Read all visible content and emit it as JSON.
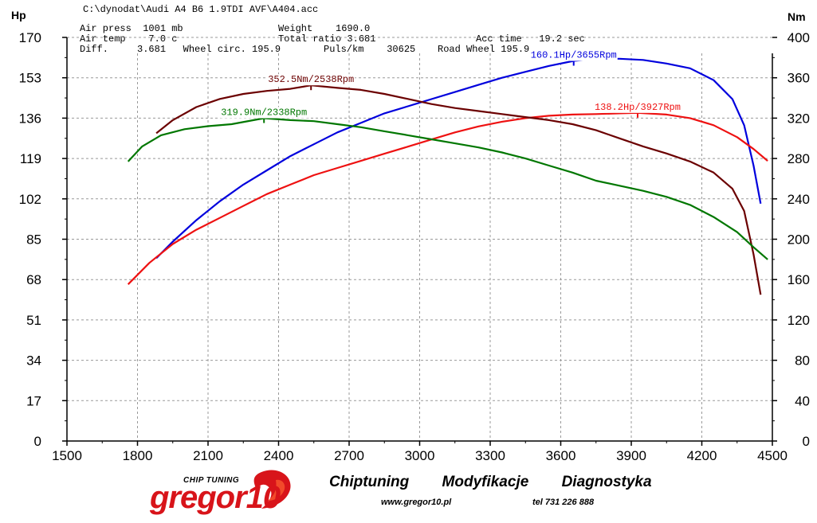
{
  "header": {
    "file_path": "C:\\dynodat\\Audi A4 B6 1.9TDI AVF\\A404.acc",
    "left_unit": "Hp",
    "right_unit": "Nm",
    "rows": [
      [
        "Air press  1001 mb",
        "Weight    1690.0",
        ""
      ],
      [
        "Air temp    7.0 c",
        "Total ratio 3.681",
        "Acc time   19.2 sec"
      ],
      [
        "Diff.     3.681   Wheel circ. 195.9",
        "Puls/km    30625",
        "Road Wheel 195.9"
      ]
    ]
  },
  "chart_data": {
    "type": "line",
    "x_ticks": [
      1500,
      1800,
      2100,
      2400,
      2700,
      3000,
      3300,
      3600,
      3900,
      4200,
      4500
    ],
    "xlim": [
      1500,
      4500
    ],
    "y_left_ticks": [
      0,
      17,
      34,
      51,
      68,
      85,
      102,
      119,
      136,
      153,
      170
    ],
    "y_left_lim": [
      0,
      170
    ],
    "y_right_ticks": [
      0,
      40,
      80,
      120,
      160,
      200,
      240,
      280,
      320,
      360,
      400
    ],
    "y_right_lim": [
      0,
      400
    ],
    "grid": true,
    "series": [
      {
        "axis": "left",
        "color": "#0000dd",
        "peak_label": "160.1Hp/3655Rpm",
        "peak": [
          3655,
          160.1
        ],
        "points": [
          [
            1880,
            77
          ],
          [
            1950,
            84
          ],
          [
            2050,
            93
          ],
          [
            2150,
            101
          ],
          [
            2250,
            108
          ],
          [
            2350,
            114
          ],
          [
            2450,
            120
          ],
          [
            2550,
            125
          ],
          [
            2650,
            130
          ],
          [
            2750,
            134
          ],
          [
            2850,
            138
          ],
          [
            2950,
            141
          ],
          [
            3050,
            144
          ],
          [
            3150,
            147
          ],
          [
            3250,
            150
          ],
          [
            3350,
            153
          ],
          [
            3450,
            155.5
          ],
          [
            3550,
            158
          ],
          [
            3655,
            160.1
          ],
          [
            3750,
            161
          ],
          [
            3850,
            161
          ],
          [
            3950,
            160.5
          ],
          [
            4050,
            159
          ],
          [
            4150,
            157
          ],
          [
            4250,
            152
          ],
          [
            4330,
            144
          ],
          [
            4380,
            133
          ],
          [
            4420,
            116
          ],
          [
            4450,
            100
          ]
        ]
      },
      {
        "axis": "left",
        "color": "#ee1111",
        "peak_label": "138.2Hp/3927Rpm",
        "peak": [
          3927,
          138.2
        ],
        "points": [
          [
            1760,
            66
          ],
          [
            1850,
            75
          ],
          [
            1950,
            83
          ],
          [
            2050,
            89
          ],
          [
            2150,
            94
          ],
          [
            2250,
            99
          ],
          [
            2350,
            104
          ],
          [
            2450,
            108
          ],
          [
            2550,
            112
          ],
          [
            2650,
            115
          ],
          [
            2750,
            118
          ],
          [
            2850,
            121
          ],
          [
            2950,
            124
          ],
          [
            3050,
            127
          ],
          [
            3150,
            130
          ],
          [
            3250,
            132.5
          ],
          [
            3350,
            134.5
          ],
          [
            3450,
            136
          ],
          [
            3550,
            137
          ],
          [
            3650,
            137.5
          ],
          [
            3750,
            137.7
          ],
          [
            3850,
            138
          ],
          [
            3927,
            138.2
          ],
          [
            4050,
            137.5
          ],
          [
            4150,
            136
          ],
          [
            4250,
            133
          ],
          [
            4350,
            128
          ],
          [
            4420,
            123
          ],
          [
            4480,
            118
          ]
        ]
      },
      {
        "axis": "right",
        "color": "#6b0000",
        "peak_label": "352.5Nm/2538Rpm",
        "peak": [
          2538,
          352.5
        ],
        "points": [
          [
            1880,
            305
          ],
          [
            1950,
            318
          ],
          [
            2050,
            331
          ],
          [
            2150,
            339
          ],
          [
            2250,
            344
          ],
          [
            2350,
            347
          ],
          [
            2450,
            349
          ],
          [
            2538,
            352.5
          ],
          [
            2650,
            350
          ],
          [
            2750,
            348
          ],
          [
            2850,
            344
          ],
          [
            2950,
            339
          ],
          [
            3050,
            334
          ],
          [
            3150,
            330
          ],
          [
            3250,
            327
          ],
          [
            3350,
            324
          ],
          [
            3450,
            321
          ],
          [
            3550,
            318
          ],
          [
            3650,
            314
          ],
          [
            3750,
            308
          ],
          [
            3850,
            300
          ],
          [
            3950,
            292
          ],
          [
            4050,
            285
          ],
          [
            4150,
            277
          ],
          [
            4250,
            266
          ],
          [
            4330,
            250
          ],
          [
            4380,
            228
          ],
          [
            4420,
            185
          ],
          [
            4450,
            145
          ]
        ]
      },
      {
        "axis": "right",
        "color": "#007700",
        "peak_label": "319.9Nm/2338Rpm",
        "peak": [
          2338,
          319.9
        ],
        "points": [
          [
            1760,
            277
          ],
          [
            1820,
            292
          ],
          [
            1900,
            303
          ],
          [
            2000,
            309
          ],
          [
            2100,
            312
          ],
          [
            2200,
            314
          ],
          [
            2338,
            319.9
          ],
          [
            2450,
            318
          ],
          [
            2550,
            317
          ],
          [
            2650,
            314
          ],
          [
            2750,
            311
          ],
          [
            2850,
            307
          ],
          [
            2950,
            303
          ],
          [
            3050,
            299
          ],
          [
            3150,
            295
          ],
          [
            3250,
            291
          ],
          [
            3350,
            286
          ],
          [
            3450,
            280
          ],
          [
            3550,
            273
          ],
          [
            3650,
            266
          ],
          [
            3750,
            258
          ],
          [
            3850,
            253
          ],
          [
            3950,
            248
          ],
          [
            4050,
            242
          ],
          [
            4150,
            234
          ],
          [
            4250,
            222
          ],
          [
            4350,
            207
          ],
          [
            4420,
            192
          ],
          [
            4480,
            180
          ]
        ]
      }
    ]
  },
  "footer": {
    "logo_small": "CHIP TUNING",
    "logo_word": "gregor10",
    "tagline": [
      "Chiptuning",
      "Modyfikacje",
      "Diagnostyka"
    ],
    "www": "www.gregor10.pl",
    "tel": "tel 731 226 888"
  }
}
